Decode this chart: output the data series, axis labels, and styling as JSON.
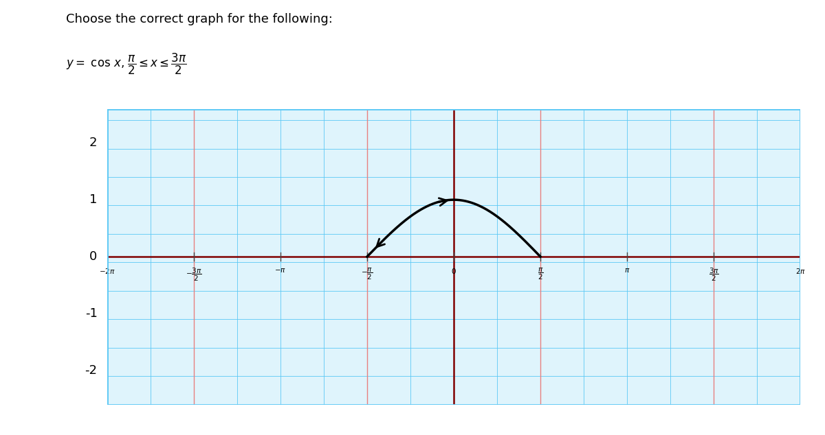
{
  "title": "Choose the correct graph for the following:",
  "x_start": -6.283185307179586,
  "x_end": 6.283185307179586,
  "y_start": -2.6,
  "y_end": 2.6,
  "curve_x_start": -1.5707963267948966,
  "curve_x_end": 1.5707963267948966,
  "pi": 3.141592653589793,
  "xtick_positions": [
    -6.283185307179586,
    -4.71238898038469,
    -3.141592653589793,
    -1.5707963267948966,
    0,
    1.5707963267948966,
    3.141592653589793,
    4.71238898038469,
    6.283185307179586
  ],
  "ytick_positions": [
    -2,
    -1,
    0,
    1,
    2
  ],
  "grid_color": "#5bc8f5",
  "axis_color": "#800000",
  "red_vline_x": [
    -4.71238898038469,
    -1.5707963267948966,
    1.5707963267948966,
    4.71238898038469
  ],
  "curve_color": "#000000",
  "curve_linewidth": 2.5,
  "background_color": "#ffffff",
  "plot_bg_color": "#dff4fc",
  "border_color": "#5bc8f5"
}
